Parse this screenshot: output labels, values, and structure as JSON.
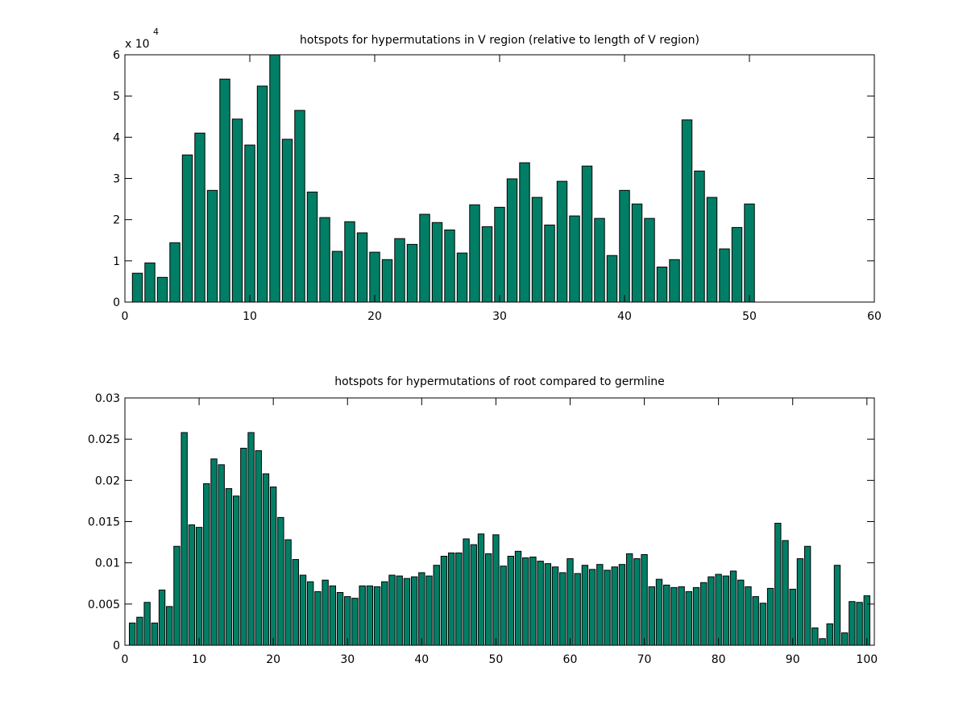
{
  "colors": {
    "bar": "#007f66",
    "edge": "#000000",
    "axes": "#000000",
    "background": "#ffffff"
  },
  "chart_data": [
    {
      "type": "bar",
      "title": "hotspots for hypermutations in V region (relative to length of V region)",
      "xlabel": "",
      "ylabel": "",
      "y_multiplier_label": {
        "base": "x 10",
        "exponent": "4"
      },
      "xlim": [
        0,
        60
      ],
      "ylim": [
        0,
        6
      ],
      "xticks": [
        0,
        10,
        20,
        30,
        40,
        50,
        60
      ],
      "yticks": [
        0,
        1,
        2,
        3,
        4,
        5,
        6
      ],
      "grid": false,
      "x": [
        1,
        2,
        3,
        4,
        5,
        6,
        7,
        8,
        9,
        10,
        11,
        12,
        13,
        14,
        15,
        16,
        17,
        18,
        19,
        20,
        21,
        22,
        23,
        24,
        25,
        26,
        27,
        28,
        29,
        30,
        31,
        32,
        33,
        34,
        35,
        36,
        37,
        38,
        39,
        40,
        41,
        42,
        43,
        44,
        45,
        46,
        47,
        48,
        49,
        50
      ],
      "values": [
        0.7,
        0.95,
        0.6,
        1.44,
        3.57,
        4.1,
        2.71,
        5.41,
        4.44,
        3.81,
        5.24,
        6.0,
        3.95,
        4.65,
        2.67,
        2.05,
        1.23,
        1.95,
        1.68,
        1.21,
        1.03,
        1.54,
        1.4,
        2.13,
        1.93,
        1.75,
        1.19,
        2.36,
        1.83,
        2.3,
        2.99,
        3.38,
        2.54,
        1.87,
        2.93,
        2.09,
        3.3,
        2.03,
        1.13,
        2.71,
        2.38,
        2.03,
        0.85,
        1.03,
        4.42,
        3.18,
        2.54,
        1.29,
        1.81,
        2.38
      ]
    },
    {
      "type": "bar",
      "title": "hotspots for hypermutations of root compared to germline",
      "xlabel": "",
      "ylabel": "",
      "xlim": [
        0,
        101
      ],
      "ylim": [
        0,
        0.03
      ],
      "xticks": [
        0,
        10,
        20,
        30,
        40,
        50,
        60,
        70,
        80,
        90,
        100
      ],
      "yticks": [
        0,
        0.005,
        0.01,
        0.015,
        0.02,
        0.025,
        0.03
      ],
      "grid": false,
      "x": [
        1,
        2,
        3,
        4,
        5,
        6,
        7,
        8,
        9,
        10,
        11,
        12,
        13,
        14,
        15,
        16,
        17,
        18,
        19,
        20,
        21,
        22,
        23,
        24,
        25,
        26,
        27,
        28,
        29,
        30,
        31,
        32,
        33,
        34,
        35,
        36,
        37,
        38,
        39,
        40,
        41,
        42,
        43,
        44,
        45,
        46,
        47,
        48,
        49,
        50,
        51,
        52,
        53,
        54,
        55,
        56,
        57,
        58,
        59,
        60,
        61,
        62,
        63,
        64,
        65,
        66,
        67,
        68,
        69,
        70,
        71,
        72,
        73,
        74,
        75,
        76,
        77,
        78,
        79,
        80,
        81,
        82,
        83,
        84,
        85,
        86,
        87,
        88,
        89,
        90,
        91,
        92,
        93,
        94,
        95,
        96,
        97,
        98,
        99,
        100
      ],
      "values": [
        0.0027,
        0.0034,
        0.0052,
        0.0027,
        0.0067,
        0.0047,
        0.012,
        0.0258,
        0.0146,
        0.0143,
        0.0196,
        0.0226,
        0.0219,
        0.019,
        0.0181,
        0.0239,
        0.0258,
        0.0236,
        0.0208,
        0.0192,
        0.0155,
        0.0128,
        0.0104,
        0.0085,
        0.0077,
        0.0065,
        0.0079,
        0.0072,
        0.0064,
        0.0059,
        0.0057,
        0.0072,
        0.0072,
        0.0071,
        0.0077,
        0.0085,
        0.0084,
        0.0081,
        0.0083,
        0.0088,
        0.0084,
        0.0097,
        0.0108,
        0.0112,
        0.0112,
        0.0129,
        0.0122,
        0.0135,
        0.0111,
        0.0134,
        0.0096,
        0.0108,
        0.0114,
        0.0106,
        0.0107,
        0.0102,
        0.0099,
        0.0095,
        0.0088,
        0.0105,
        0.0087,
        0.0097,
        0.0092,
        0.0098,
        0.0091,
        0.0095,
        0.0098,
        0.0111,
        0.0105,
        0.011,
        0.0071,
        0.008,
        0.0073,
        0.007,
        0.0071,
        0.0065,
        0.007,
        0.0076,
        0.0083,
        0.0086,
        0.0084,
        0.009,
        0.0079,
        0.0071,
        0.0059,
        0.0051,
        0.0069,
        0.0148,
        0.0127,
        0.0068,
        0.0105,
        0.012,
        0.0021,
        0.0008,
        0.0026,
        0.0097,
        0.0015,
        0.0053,
        0.0052,
        0.006
      ]
    }
  ]
}
